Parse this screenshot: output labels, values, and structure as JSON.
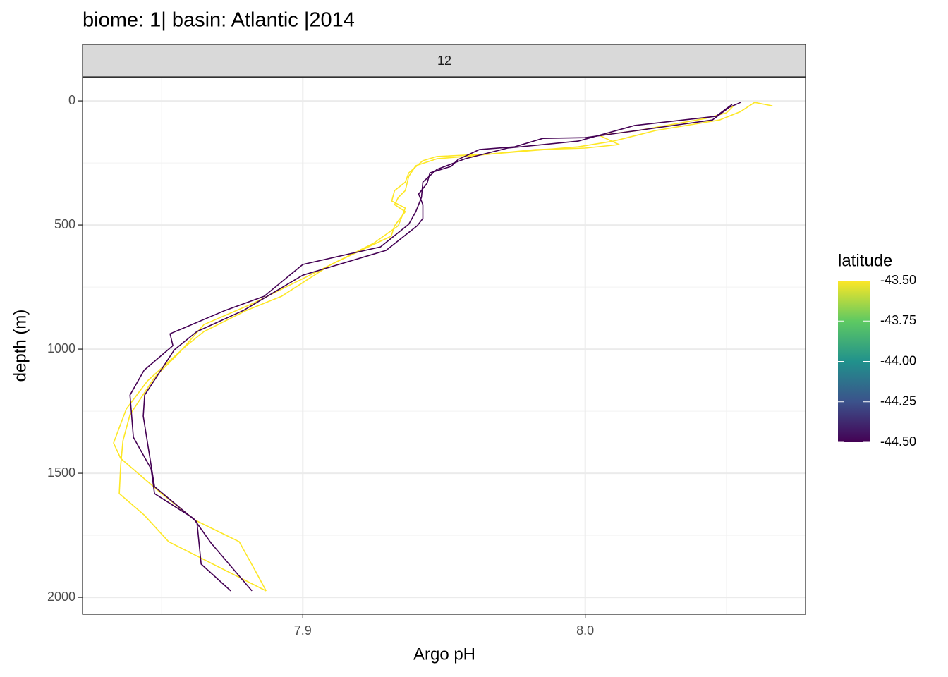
{
  "chart_data": {
    "type": "line",
    "title": "biome: 1| basin: Atlantic |2014",
    "facet_label": "12",
    "x_label": "Argo pH",
    "y_label": "depth (m)",
    "xlim": [
      7.822,
      8.078
    ],
    "xticks": [
      7.9,
      {
        "value": 8.0,
        "label": "8.0"
      }
    ],
    "ylim": [
      -94,
      2068
    ],
    "y_reversed": true,
    "yticks": [
      0,
      500,
      1000,
      1500,
      2000
    ],
    "grid": true,
    "series": [
      {
        "color": "#fde725",
        "x": [
          8.0525,
          8.05,
          8.0425,
          8.0188,
          8.005,
          8.012,
          8.0,
          7.9825,
          7.9575,
          7.9475,
          7.94,
          7.9375,
          7.9363,
          7.9338,
          7.9325,
          7.9363,
          7.9325,
          7.9313,
          7.91,
          7.8925,
          7.88,
          7.865,
          7.8588,
          7.845,
          7.8375,
          7.833,
          7.8355,
          7.85,
          7.862,
          7.8775,
          7.883,
          7.887
        ],
        "values": [
          20,
          48,
          71,
          119,
          139,
          176,
          190,
          196,
          224,
          233,
          261,
          304,
          361,
          389,
          418,
          446,
          503,
          545,
          659,
          787,
          844,
          929,
          986,
          1128,
          1241,
          1378,
          1440,
          1582,
          1690,
          1776,
          1889,
          1974
        ]
      },
      {
        "color": "#fde725",
        "x": [
          8.0663,
          8.06,
          8.055,
          8.0475,
          8.025,
          8.01,
          7.9975,
          7.9675,
          7.9475,
          7.9425,
          7.9375,
          7.9363,
          7.9325,
          7.9315,
          7.9363,
          7.9338,
          7.925,
          7.9025,
          7.8825,
          7.865,
          7.8563,
          7.8475,
          7.8388,
          7.8363,
          7.8355,
          7.835,
          7.8438,
          7.8525,
          7.887
        ],
        "values": [
          20,
          6,
          43,
          77,
          119,
          162,
          185,
          213,
          224,
          241,
          290,
          327,
          361,
          403,
          432,
          503,
          574,
          702,
          815,
          901,
          1014,
          1114,
          1264,
          1369,
          1469,
          1582,
          1668,
          1776,
          1974
        ]
      },
      {
        "color": "#440154",
        "x": [
          8.055,
          8.051,
          8.045,
          8.0275,
          8.0,
          7.985,
          7.975,
          7.9625,
          7.955,
          7.9525,
          7.945,
          7.944,
          7.941,
          7.9425,
          7.9425,
          7.9405,
          7.9295,
          7.9,
          7.879,
          7.8625,
          7.8545,
          7.844,
          7.8435,
          7.8475,
          7.8625,
          7.864,
          7.8745
        ],
        "values": [
          6,
          26,
          77,
          105,
          148,
          151,
          185,
          196,
          236,
          264,
          290,
          332,
          375,
          418,
          474,
          503,
          602,
          702,
          844,
          929,
          1003,
          1185,
          1270,
          1554,
          1696,
          1866,
          1974
        ]
      },
      {
        "color": "#440154",
        "x": [
          8.052,
          8.0463,
          8.0175,
          7.9975,
          7.9725,
          7.9575,
          7.9475,
          7.9425,
          7.942,
          7.94,
          7.9375,
          7.9275,
          7.9,
          7.8863,
          7.8725,
          7.853,
          7.854,
          7.8438,
          7.8388,
          7.84,
          7.8463,
          7.8475,
          7.8613,
          7.8675,
          7.882
        ],
        "values": [
          14,
          62,
          99,
          162,
          190,
          233,
          276,
          327,
          389,
          446,
          497,
          588,
          659,
          787,
          844,
          938,
          986,
          1085,
          1185,
          1355,
          1483,
          1582,
          1682,
          1781,
          1974
        ]
      }
    ],
    "colorbar": {
      "title": "latitude",
      "lim": [
        -44.5,
        -43.5
      ],
      "colors": [
        "#440154",
        "#3b528b",
        "#21918c",
        "#5ec962",
        "#fde725"
      ],
      "ticks": [
        {
          "value": -43.5,
          "label": "-43.50"
        },
        {
          "value": -43.75,
          "label": "-43.75"
        },
        {
          "value": -44.0,
          "label": "-44.00"
        },
        {
          "value": -44.25,
          "label": "-44.25"
        },
        {
          "value": -44.5,
          "label": "-44.50"
        }
      ]
    }
  }
}
